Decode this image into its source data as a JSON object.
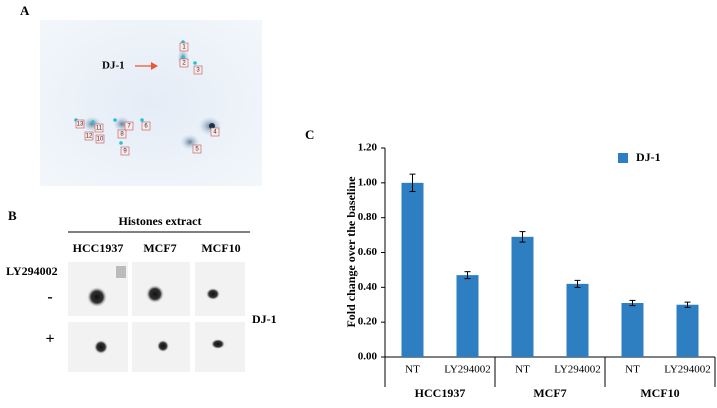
{
  "panels": {
    "A": {
      "label": "A",
      "marker": "DJ-1",
      "spots": [
        "1",
        "2",
        "3",
        "4",
        "5",
        "6",
        "7",
        "8",
        "9",
        "10",
        "11",
        "12",
        "13"
      ]
    },
    "B": {
      "label": "B",
      "header": "Histones extract",
      "cell_lines": [
        "HCC1937",
        "MCF7",
        "MCF10"
      ],
      "treatment": "LY294002",
      "rows": [
        "-",
        "+"
      ],
      "protein": "DJ-1"
    },
    "C": {
      "label": "C"
    }
  },
  "chart_data": {
    "type": "bar",
    "y_label": "Fold change over the baseline",
    "categories": [
      "NT",
      "LY294002",
      "NT",
      "LY294002",
      "NT",
      "LY294002"
    ],
    "groups": [
      "HCC1937",
      "MCF7",
      "MCF10"
    ],
    "series": [
      {
        "name": "DJ-1",
        "color": "#2e7fc1",
        "values": [
          1.0,
          0.47,
          0.69,
          0.42,
          0.31,
          0.3
        ],
        "errors": [
          0.05,
          0.02,
          0.03,
          0.02,
          0.015,
          0.015
        ]
      }
    ],
    "ylim": [
      0,
      1.2
    ],
    "yticks": [
      {
        "value": 0,
        "label": "0.00"
      },
      {
        "value": 0.2,
        "label": "0.20"
      },
      {
        "value": 0.4,
        "label": "0.40"
      },
      {
        "value": 0.6,
        "label": "0.60"
      },
      {
        "value": 0.8,
        "label": "0.80"
      },
      {
        "value": 1.0,
        "label": "1.00"
      },
      {
        "value": 1.2,
        "label": "1.20"
      }
    ],
    "legend": "upper-right"
  }
}
